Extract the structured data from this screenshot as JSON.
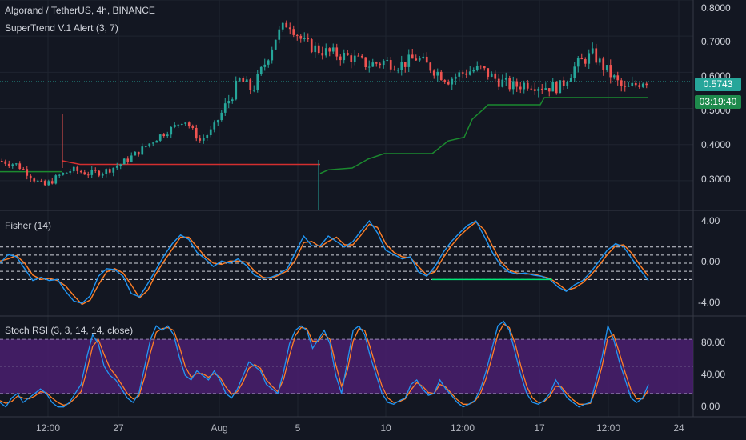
{
  "header": {
    "symbol_title": "Algorand / TetherUS, 4h, BINANCE",
    "indicator_title": "SuperTrend V.1 Alert (3, 7)"
  },
  "price_axis": {
    "ticks": [
      "0.8000",
      "0.7000",
      "0.6000",
      "0.5000",
      "0.4000",
      "0.3000"
    ]
  },
  "last_price_tag": {
    "text": "0.5743",
    "color": "#26a69a"
  },
  "countdown_tag": {
    "text": "03:19:40",
    "color": "#1e8a4c"
  },
  "fisher_pane": {
    "title": "Fisher (14)",
    "ticks": [
      "4.00",
      "0.00",
      "-4.00"
    ]
  },
  "stoch_pane": {
    "title": "Stoch RSI (3, 3, 14, 14, close)",
    "ticks": [
      "80.00",
      "40.00",
      "0.00"
    ]
  },
  "time_axis": {
    "ticks": [
      "12:00",
      "27",
      "Aug",
      "5",
      "10",
      "12:00",
      "17",
      "12:00",
      "24"
    ]
  },
  "colors": {
    "background": "#131722",
    "up": "#26a69a",
    "down": "#ef5350",
    "supertrend_up": "#1b8a2f",
    "supertrend_down": "#d32f2f",
    "fisher": "#2196f3",
    "trigger": "#ff7f27",
    "stoch_k": "#2196f3",
    "stoch_d": "#ff7f27",
    "stoch_band": "#4a1f6e",
    "signal_marker": "#00e676"
  },
  "chart_data": [
    {
      "type": "candlestick",
      "title": "Algorand / TetherUS, 4h, BINANCE",
      "ylim": [
        0.22,
        0.8
      ],
      "last_price": 0.5743,
      "series": [
        {
          "name": "SuperTrend V.1 Alert (3, 7)",
          "type": "line"
        }
      ]
    },
    {
      "type": "line",
      "title": "Fisher (14)",
      "ylim": [
        -4.8,
        4.8
      ],
      "levels": [
        1.5,
        0.75,
        0,
        -0.75,
        -1.5
      ],
      "series": [
        {
          "values": [
            0,
            0.8,
            0.6,
            -0.5,
            -1.6,
            -1.3,
            -1.6,
            -1.5,
            -2.6,
            -3.5,
            -3.7,
            -3.0,
            -1.2,
            -0.5,
            -0.6,
            -1.2,
            -2.8,
            -3.1,
            -1.9,
            -0.6,
            0.7,
            1.8,
            2.6,
            2.2,
            1.0,
            0.4,
            -0.3,
            0.2,
            0.0,
            0.4,
            -0.2,
            -1.1,
            -1.4,
            -1.3,
            -1.0,
            -0.5,
            1.0,
            2.5,
            1.6,
            1.6,
            2.5,
            2.0,
            1.5,
            2.0,
            3.0,
            3.9,
            2.8,
            1.2,
            0.8,
            0.4,
            0.6,
            -0.8,
            -1.2,
            -0.3,
            1.0,
            2.0,
            2.8,
            3.5,
            3.9,
            2.5,
            1.0,
            -0.2,
            -0.8,
            -1.0,
            -0.9,
            -1.1,
            -1.2,
            -1.5,
            -2.2,
            -2.6,
            -2.0,
            -1.6,
            -0.8,
            0.2,
            1.2,
            1.8,
            1.5,
            0.4,
            -0.6,
            -1.6
          ]
        },
        {
          "values": [
            0.2,
            0.4,
            0.7,
            0.0,
            -1.1,
            -1.5,
            -1.4,
            -1.6,
            -2.1,
            -3.0,
            -3.8,
            -3.4,
            -2.0,
            -0.8,
            -0.5,
            -0.9,
            -2.0,
            -3.2,
            -2.5,
            -1.0,
            0.2,
            1.3,
            2.4,
            2.4,
            1.5,
            0.6,
            0.0,
            -0.1,
            0.2,
            0.2,
            0.1,
            -0.7,
            -1.3,
            -1.4,
            -1.1,
            -0.7,
            0.3,
            1.9,
            2.0,
            1.5,
            2.0,
            2.4,
            1.7,
            1.7,
            2.6,
            3.6,
            3.3,
            1.8,
            1.0,
            0.6,
            0.5,
            -0.3,
            -1.1,
            -0.8,
            0.5,
            1.6,
            2.5,
            3.2,
            3.8,
            3.1,
            1.6,
            0.2,
            -0.6,
            -0.9,
            -1.0,
            -1.0,
            -1.2,
            -1.4,
            -1.9,
            -2.5,
            -2.3,
            -1.8,
            -1.1,
            -0.2,
            0.8,
            1.6,
            1.7,
            0.9,
            -0.2,
            -1.2
          ]
        }
      ]
    },
    {
      "type": "line",
      "title": "Stoch RSI (3, 3, 14, 14, close)",
      "ylim": [
        -5,
        105
      ],
      "levels": [
        80,
        50,
        20
      ],
      "series": [
        {
          "values": [
            10,
            5,
            15,
            20,
            10,
            15,
            20,
            25,
            20,
            10,
            5,
            5,
            10,
            20,
            30,
            60,
            85,
            75,
            50,
            40,
            35,
            25,
            15,
            10,
            20,
            50,
            80,
            95,
            90,
            95,
            85,
            60,
            40,
            35,
            45,
            40,
            35,
            45,
            35,
            20,
            15,
            25,
            40,
            55,
            50,
            45,
            30,
            25,
            20,
            45,
            75,
            90,
            95,
            90,
            70,
            80,
            90,
            75,
            40,
            20,
            55,
            90,
            95,
            85,
            60,
            40,
            20,
            10,
            8,
            12,
            15,
            30,
            35,
            25,
            18,
            20,
            35,
            25,
            18,
            10,
            5,
            8,
            12,
            25,
            45,
            70,
            95,
            100,
            90,
            65,
            40,
            20,
            10,
            8,
            12,
            20,
            35,
            25,
            15,
            10,
            5,
            8,
            10,
            35,
            60,
            95,
            80,
            55,
            35,
            15,
            10,
            15,
            30
          ]
        },
        {
          "values": [
            12,
            9,
            11,
            17,
            15,
            14,
            17,
            22,
            21,
            15,
            10,
            7,
            9,
            15,
            22,
            45,
            72,
            80,
            63,
            48,
            40,
            30,
            20,
            14,
            17,
            38,
            65,
            88,
            92,
            93,
            90,
            72,
            50,
            38,
            42,
            42,
            38,
            42,
            38,
            27,
            19,
            22,
            33,
            48,
            52,
            48,
            35,
            28,
            22,
            36,
            62,
            84,
            93,
            92,
            78,
            78,
            86,
            80,
            52,
            28,
            45,
            78,
            92,
            90,
            70,
            48,
            28,
            15,
            10,
            11,
            14,
            24,
            32,
            28,
            21,
            20,
            30,
            27,
            20,
            13,
            8,
            8,
            11,
            20,
            37,
            60,
            85,
            97,
            93,
            75,
            50,
            28,
            15,
            10,
            11,
            17,
            28,
            27,
            19,
            13,
            8,
            8,
            9,
            26,
            50,
            82,
            85,
            65,
            43,
            24,
            14,
            14,
            24
          ]
        }
      ]
    }
  ]
}
